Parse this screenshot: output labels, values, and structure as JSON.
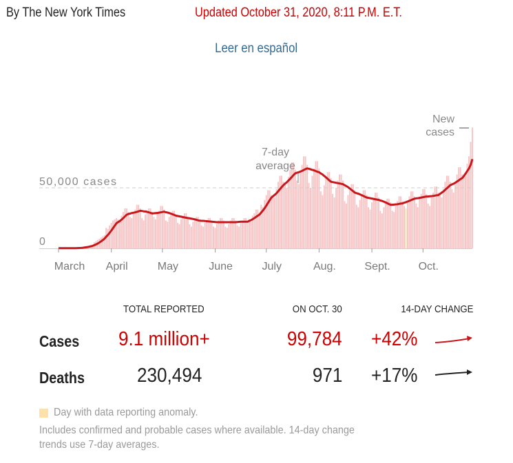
{
  "header": {
    "byline": "By The New York Times",
    "updated": "Updated October 31, 2020, 8:11 P.M. E.T.",
    "spanish_link": "Leer en español"
  },
  "colors": {
    "accent_red": "#cc0000",
    "bar": "#f7c5c5",
    "average_line": "#c8161a",
    "anomaly": "#fde1a9",
    "link": "#326891"
  },
  "chart_data": {
    "type": "bar",
    "start_date": "2020-03-01",
    "end_date": "2020-10-30",
    "ylim": [
      0,
      100000
    ],
    "y_ticks": [
      {
        "value": 0,
        "label": "0"
      },
      {
        "value": 50000,
        "label": "50,000 cases"
      }
    ],
    "x_ticks": [
      {
        "date": "2020-03-01",
        "label": "March"
      },
      {
        "date": "2020-04-01",
        "label": "April"
      },
      {
        "date": "2020-05-01",
        "label": "May"
      },
      {
        "date": "2020-06-01",
        "label": "June"
      },
      {
        "date": "2020-07-01",
        "label": "July"
      },
      {
        "date": "2020-08-01",
        "label": "Aug."
      },
      {
        "date": "2020-09-01",
        "label": "Sept."
      },
      {
        "date": "2020-10-01",
        "label": "Oct."
      }
    ],
    "annotations": {
      "average_label": [
        "7-day",
        "average"
      ],
      "new_cases_label": [
        "New",
        "cases"
      ]
    },
    "anomaly_dates": [
      "2020-09-21"
    ],
    "series": [
      {
        "name": "New cases",
        "values": [
          100,
          100,
          100,
          100,
          100,
          100,
          100,
          200,
          200,
          300,
          300,
          400,
          400,
          400,
          1200,
          1500,
          1800,
          2000,
          2300,
          2600,
          3000,
          5000,
          6000,
          7000,
          8000,
          9000,
          10000,
          11000,
          17000,
          16000,
          19000,
          21000,
          23000,
          24000,
          25000,
          24000,
          22000,
          27000,
          30000,
          33000,
          33000,
          30000,
          26000,
          25000,
          29000,
          32000,
          36000,
          36000,
          33000,
          25000,
          23000,
          28000,
          30000,
          33000,
          33000,
          30000,
          26000,
          24000,
          29000,
          31000,
          35000,
          35000,
          32000,
          23000,
          22000,
          26000,
          28000,
          31000,
          31000,
          28000,
          21000,
          20000,
          24000,
          26000,
          29000,
          29000,
          26000,
          20000,
          18000,
          22000,
          24000,
          26000,
          26000,
          24000,
          19000,
          18000,
          21000,
          23000,
          25000,
          25000,
          23000,
          18000,
          17000,
          20000,
          23000,
          25000,
          25000,
          23000,
          18000,
          17000,
          20000,
          23000,
          25000,
          25000,
          23000,
          19000,
          18000,
          21000,
          23000,
          25000,
          25000,
          23000,
          24000,
          22000,
          27000,
          29000,
          32000,
          32000,
          29000,
          36000,
          34000,
          40000,
          44000,
          48000,
          48000,
          44000,
          44000,
          42000,
          49000,
          55000,
          60000,
          60000,
          55000,
          53000,
          50000,
          59000,
          65000,
          71000,
          71000,
          65000,
          56000,
          53000,
          63000,
          69000,
          76000,
          76000,
          69000,
          54000,
          50000,
          60000,
          66000,
          72000,
          72000,
          66000,
          47000,
          44000,
          52000,
          58000,
          63000,
          63000,
          58000,
          45000,
          42000,
          50000,
          56000,
          61000,
          61000,
          56000,
          39000,
          37000,
          44000,
          48000,
          53000,
          53000,
          48000,
          36000,
          34000,
          40000,
          44000,
          48000,
          48000,
          44000,
          34000,
          32000,
          38000,
          42000,
          46000,
          46000,
          42000,
          31000,
          29000,
          34000,
          38000,
          41000,
          41000,
          38000,
          31000,
          30000,
          35000,
          39000,
          43000,
          43000,
          39000,
          35000,
          33000,
          39000,
          43000,
          47000,
          47000,
          43000,
          37000,
          34000,
          41000,
          45000,
          49000,
          49000,
          45000,
          37000,
          35000,
          42000,
          46000,
          51000,
          51000,
          46000,
          44000,
          42000,
          49000,
          55000,
          60000,
          60000,
          55000,
          49000,
          46000,
          55000,
          61000,
          67000,
          67000,
          61000,
          61000,
          60000,
          70000,
          76000,
          88000,
          99784
        ]
      }
    ]
  },
  "summary": {
    "headers": {
      "total": "TOTAL REPORTED",
      "latest": "ON OCT. 30",
      "change": "14-DAY CHANGE"
    },
    "rows": [
      {
        "label": "Cases",
        "total": "9.1 million+",
        "latest": "99,784",
        "change": "+42%",
        "trend": "up-arrow"
      },
      {
        "label": "Deaths",
        "total": "230,494",
        "latest": "971",
        "change": "+17%",
        "trend": "up-arrow"
      }
    ]
  },
  "footer": {
    "anomaly_legend": "Day with data reporting anomaly.",
    "note_line1": "Includes confirmed and probable cases where available. 14-day change",
    "note_line2": "trends use 7-day averages."
  }
}
